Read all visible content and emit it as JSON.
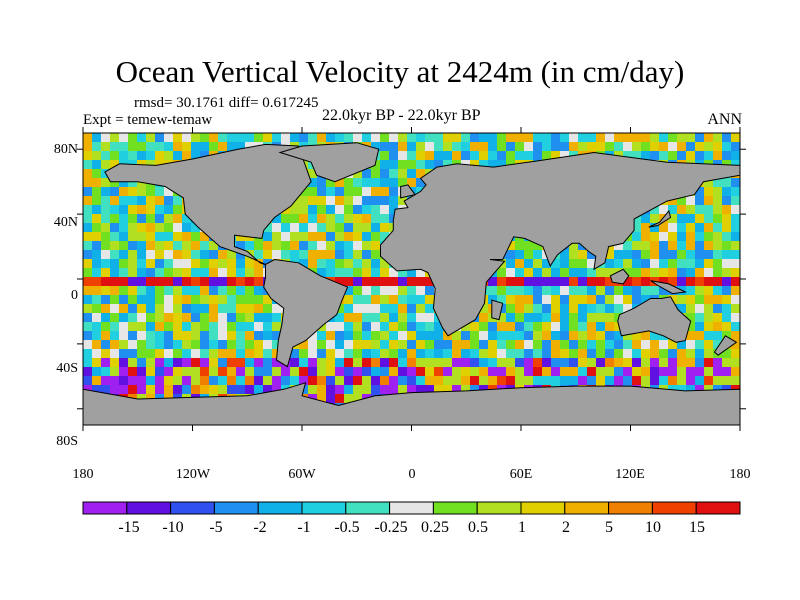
{
  "chart_data": {
    "type": "heatmap",
    "title": "Ocean Vertical Velocity at 2424m (in cm/day)",
    "stats_text": "rmsd= 30.1761 diff= 0.617245",
    "left_label": "Expt = temew-temaw",
    "center_label": "22.0kyr BP - 22.0kyr BP",
    "right_label": "ANN",
    "x_tick_labels": [
      "180",
      "120W",
      "60W",
      "0",
      "60E",
      "120E",
      "180"
    ],
    "y_tick_labels": [
      "80N",
      "40N",
      "0",
      "40S",
      "80S"
    ],
    "x_ticks": [
      -180,
      -120,
      -60,
      0,
      60,
      120,
      180
    ],
    "y_ticks": [
      80,
      40,
      0,
      -40,
      -80
    ],
    "xlim": [
      -180,
      180
    ],
    "ylim": [
      -90,
      90
    ],
    "land_color": "#a0a0a0",
    "colorbar": {
      "levels": [
        "-15",
        "-10",
        "-5",
        "-2",
        "-1",
        "-0.5",
        "-0.25",
        "0.25",
        "0.5",
        "1",
        "2",
        "5",
        "10",
        "15"
      ],
      "colors": [
        "#a020f0",
        "#6010e0",
        "#3050f0",
        "#2090f0",
        "#10b0e8",
        "#20d0e0",
        "#40e0c0",
        "#e6e6e6",
        "#70e020",
        "#b0e020",
        "#e0d000",
        "#f0b000",
        "#f08000",
        "#f04000",
        "#e01010"
      ]
    }
  }
}
